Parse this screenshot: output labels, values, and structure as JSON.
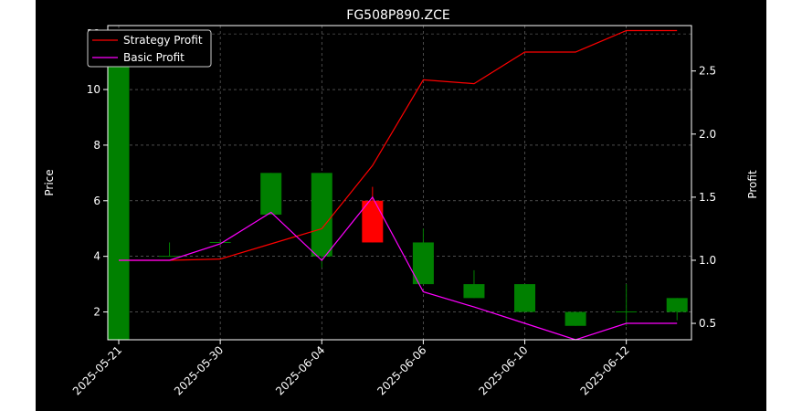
{
  "chart_data": {
    "type": "candlestick",
    "title": "FG508P890.ZCE",
    "ylabel_left": "Price",
    "ylabel_right": "Profit",
    "ylim_left": [
      1.0,
      12.3
    ],
    "ylim_right": [
      0.37,
      2.86
    ],
    "yticks_left": [
      2,
      4,
      6,
      8,
      10,
      12
    ],
    "yticks_right": [
      0.5,
      1.0,
      1.5,
      2.0,
      2.5
    ],
    "xticks": [
      {
        "i": 0,
        "label": "2025-05-21"
      },
      {
        "i": 2,
        "label": "2025-05-30"
      },
      {
        "i": 4,
        "label": "2025-06-04"
      },
      {
        "i": 6,
        "label": "2025-06-06"
      },
      {
        "i": 8,
        "label": "2025-06-10"
      },
      {
        "i": 10,
        "label": "2025-06-12"
      }
    ],
    "grid": true,
    "legend_position": "top-left",
    "candles": [
      {
        "i": 0,
        "open": 1.0,
        "high": 12.0,
        "low": 1.0,
        "close": 12.0
      },
      {
        "i": 1,
        "open": 4.0,
        "high": 4.5,
        "low": 4.0,
        "close": 4.0
      },
      {
        "i": 2,
        "open": 4.5,
        "high": 4.5,
        "low": 4.5,
        "close": 4.5
      },
      {
        "i": 3,
        "open": 5.5,
        "high": 7.0,
        "low": 5.5,
        "close": 7.0
      },
      {
        "i": 4,
        "open": 4.0,
        "high": 7.0,
        "low": 3.6,
        "close": 7.0
      },
      {
        "i": 5,
        "open": 6.0,
        "high": 6.5,
        "low": 4.5,
        "close": 4.5
      },
      {
        "i": 6,
        "open": 3.0,
        "high": 5.0,
        "low": 3.0,
        "close": 4.5
      },
      {
        "i": 7,
        "open": 2.5,
        "high": 3.5,
        "low": 2.5,
        "close": 3.0
      },
      {
        "i": 8,
        "open": 2.0,
        "high": 3.0,
        "low": 2.0,
        "close": 3.0
      },
      {
        "i": 9,
        "open": 1.5,
        "high": 2.0,
        "low": 1.5,
        "close": 2.0
      },
      {
        "i": 10,
        "open": 2.0,
        "high": 3.0,
        "low": 1.5,
        "close": 2.0
      },
      {
        "i": 11,
        "open": 2.0,
        "high": 2.5,
        "low": 1.7,
        "close": 2.5
      }
    ],
    "series": [
      {
        "name": "Strategy Profit",
        "color": "#ff0000",
        "values": [
          1.0,
          1.0,
          1.01,
          1.13,
          1.25,
          1.75,
          2.43,
          2.4,
          2.65,
          2.65,
          2.82,
          2.82
        ]
      },
      {
        "name": "Basic Profit",
        "color": "#ff00ff",
        "values": [
          1.0,
          1.0,
          1.13,
          1.38,
          1.0,
          1.5,
          0.75,
          0.63,
          0.5,
          0.37,
          0.5,
          0.5
        ]
      }
    ],
    "colors": {
      "up": "#008000",
      "down": "#ff0000",
      "background": "#000000",
      "text": "#ffffff"
    }
  }
}
